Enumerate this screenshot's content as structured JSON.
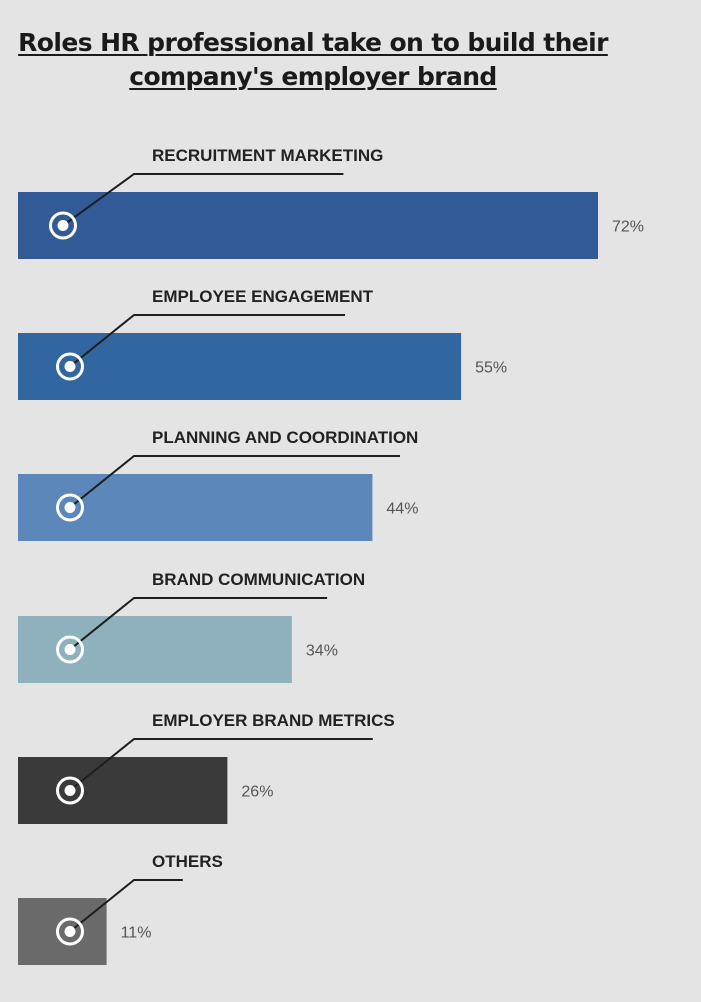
{
  "chart_data": {
    "type": "bar",
    "orientation": "horizontal",
    "title_line1": "Roles HR professional take on to build their",
    "title_line2": "company's employer brand",
    "categories": [
      "RECRUITMENT MARKETING",
      "EMPLOYEE ENGAGEMENT",
      "PLANNING AND COORDINATION",
      "BRAND COMMUNICATION",
      "EMPLOYER BRAND METRICS",
      "OTHERS"
    ],
    "values": [
      72,
      55,
      44,
      34,
      26,
      11
    ],
    "value_labels": [
      "72%",
      "55%",
      "44%",
      "34%",
      "26%",
      "11%"
    ],
    "colors": [
      "#325a96",
      "#3266a0",
      "#5b87bb",
      "#8fb1be",
      "#3a3a3a",
      "#6a6a6a"
    ],
    "unit": "%",
    "xlim": [
      0,
      100
    ],
    "grid": false,
    "legend": "none"
  }
}
